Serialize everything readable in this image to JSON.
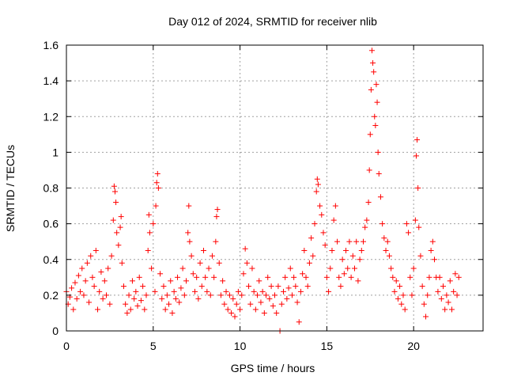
{
  "chart_data": {
    "type": "scatter",
    "title": "Day 012 of 2024, SRMTID for receiver nlib",
    "xlabel": "GPS time / hours",
    "ylabel": "SRMTID / TECUs",
    "xlim": [
      0,
      24
    ],
    "ylim": [
      0,
      1.6
    ],
    "xticks": [
      0,
      5,
      10,
      15,
      20
    ],
    "xtick_labels": [
      "0",
      "5",
      "10",
      "15",
      "20"
    ],
    "yticks": [
      0,
      0.2,
      0.4,
      0.6,
      0.8,
      1,
      1.2,
      1.4,
      1.6
    ],
    "ytick_labels": [
      "0",
      "0.2",
      "0.4",
      "0.6",
      "0.8",
      "1",
      "1.2",
      "1.4",
      "1.6"
    ],
    "grid": true,
    "marker": "plus",
    "color": "#ff0000",
    "series": [
      {
        "name": "SRMTID",
        "points": [
          [
            0.0,
            0.22
          ],
          [
            0.1,
            0.15
          ],
          [
            0.2,
            0.19
          ],
          [
            0.3,
            0.24
          ],
          [
            0.4,
            0.12
          ],
          [
            0.5,
            0.27
          ],
          [
            0.6,
            0.18
          ],
          [
            0.7,
            0.31
          ],
          [
            0.8,
            0.22
          ],
          [
            0.9,
            0.35
          ],
          [
            1.0,
            0.2
          ],
          [
            1.1,
            0.28
          ],
          [
            1.2,
            0.38
          ],
          [
            1.3,
            0.16
          ],
          [
            1.4,
            0.42
          ],
          [
            1.5,
            0.3
          ],
          [
            1.6,
            0.25
          ],
          [
            1.7,
            0.45
          ],
          [
            1.8,
            0.12
          ],
          [
            1.9,
            0.22
          ],
          [
            2.0,
            0.33
          ],
          [
            2.1,
            0.18
          ],
          [
            2.2,
            0.28
          ],
          [
            2.3,
            0.2
          ],
          [
            2.4,
            0.35
          ],
          [
            2.5,
            0.15
          ],
          [
            2.6,
            0.42
          ],
          [
            2.7,
            0.62
          ],
          [
            2.75,
            0.81
          ],
          [
            2.8,
            0.78
          ],
          [
            2.85,
            0.72
          ],
          [
            2.9,
            0.55
          ],
          [
            3.0,
            0.48
          ],
          [
            3.1,
            0.58
          ],
          [
            3.15,
            0.64
          ],
          [
            3.2,
            0.38
          ],
          [
            3.3,
            0.25
          ],
          [
            3.4,
            0.15
          ],
          [
            3.5,
            0.1
          ],
          [
            3.6,
            0.2
          ],
          [
            3.7,
            0.12
          ],
          [
            3.8,
            0.28
          ],
          [
            3.9,
            0.18
          ],
          [
            4.0,
            0.22
          ],
          [
            4.1,
            0.14
          ],
          [
            4.2,
            0.3
          ],
          [
            4.3,
            0.17
          ],
          [
            4.4,
            0.25
          ],
          [
            4.5,
            0.12
          ],
          [
            4.6,
            0.2
          ],
          [
            4.7,
            0.45
          ],
          [
            4.75,
            0.65
          ],
          [
            4.8,
            0.55
          ],
          [
            4.9,
            0.35
          ],
          [
            5.0,
            0.6
          ],
          [
            5.1,
            0.22
          ],
          [
            5.15,
            0.7
          ],
          [
            5.2,
            0.83
          ],
          [
            5.25,
            0.88
          ],
          [
            5.3,
            0.8
          ],
          [
            5.4,
            0.32
          ],
          [
            5.5,
            0.18
          ],
          [
            5.6,
            0.25
          ],
          [
            5.7,
            0.12
          ],
          [
            5.8,
            0.2
          ],
          [
            5.9,
            0.15
          ],
          [
            6.0,
            0.28
          ],
          [
            6.1,
            0.1
          ],
          [
            6.2,
            0.22
          ],
          [
            6.3,
            0.18
          ],
          [
            6.4,
            0.3
          ],
          [
            6.5,
            0.16
          ],
          [
            6.6,
            0.24
          ],
          [
            6.7,
            0.35
          ],
          [
            6.8,
            0.2
          ],
          [
            6.9,
            0.28
          ],
          [
            7.0,
            0.55
          ],
          [
            7.05,
            0.7
          ],
          [
            7.1,
            0.5
          ],
          [
            7.2,
            0.42
          ],
          [
            7.3,
            0.32
          ],
          [
            7.4,
            0.22
          ],
          [
            7.5,
            0.3
          ],
          [
            7.6,
            0.18
          ],
          [
            7.7,
            0.38
          ],
          [
            7.8,
            0.25
          ],
          [
            7.9,
            0.45
          ],
          [
            8.0,
            0.3
          ],
          [
            8.1,
            0.22
          ],
          [
            8.2,
            0.35
          ],
          [
            8.3,
            0.2
          ],
          [
            8.4,
            0.42
          ],
          [
            8.5,
            0.3
          ],
          [
            8.6,
            0.5
          ],
          [
            8.65,
            0.64
          ],
          [
            8.7,
            0.68
          ],
          [
            8.8,
            0.38
          ],
          [
            8.9,
            0.2
          ],
          [
            9.0,
            0.28
          ],
          [
            9.1,
            0.15
          ],
          [
            9.2,
            0.22
          ],
          [
            9.3,
            0.12
          ],
          [
            9.4,
            0.2
          ],
          [
            9.5,
            0.1
          ],
          [
            9.6,
            0.18
          ],
          [
            9.7,
            0.08
          ],
          [
            9.8,
            0.15
          ],
          [
            9.9,
            0.22
          ],
          [
            10.0,
            0.12
          ],
          [
            10.1,
            0.2
          ],
          [
            10.2,
            0.32
          ],
          [
            10.3,
            0.46
          ],
          [
            10.4,
            0.38
          ],
          [
            10.5,
            0.25
          ],
          [
            10.6,
            0.15
          ],
          [
            10.7,
            0.35
          ],
          [
            10.8,
            0.22
          ],
          [
            10.9,
            0.12
          ],
          [
            11.0,
            0.2
          ],
          [
            11.1,
            0.28
          ],
          [
            11.2,
            0.16
          ],
          [
            11.3,
            0.22
          ],
          [
            11.4,
            0.1
          ],
          [
            11.5,
            0.2
          ],
          [
            11.6,
            0.3
          ],
          [
            11.7,
            0.18
          ],
          [
            11.8,
            0.25
          ],
          [
            11.9,
            0.14
          ],
          [
            12.0,
            0.2
          ],
          [
            12.1,
            0.1
          ],
          [
            12.2,
            0.25
          ],
          [
            12.3,
            0.0
          ],
          [
            12.4,
            0.15
          ],
          [
            12.5,
            0.22
          ],
          [
            12.6,
            0.3
          ],
          [
            12.7,
            0.18
          ],
          [
            12.8,
            0.24
          ],
          [
            12.9,
            0.35
          ],
          [
            13.0,
            0.2
          ],
          [
            13.1,
            0.3
          ],
          [
            13.2,
            0.25
          ],
          [
            13.3,
            0.16
          ],
          [
            13.4,
            0.05
          ],
          [
            13.5,
            0.22
          ],
          [
            13.6,
            0.32
          ],
          [
            13.7,
            0.45
          ],
          [
            13.8,
            0.3
          ],
          [
            13.9,
            0.25
          ],
          [
            14.0,
            0.38
          ],
          [
            14.1,
            0.52
          ],
          [
            14.2,
            0.42
          ],
          [
            14.3,
            0.6
          ],
          [
            14.4,
            0.78
          ],
          [
            14.45,
            0.85
          ],
          [
            14.5,
            0.82
          ],
          [
            14.6,
            0.7
          ],
          [
            14.7,
            0.65
          ],
          [
            14.8,
            0.55
          ],
          [
            14.9,
            0.48
          ],
          [
            15.0,
            0.3
          ],
          [
            15.1,
            0.22
          ],
          [
            15.2,
            0.35
          ],
          [
            15.3,
            0.45
          ],
          [
            15.4,
            0.62
          ],
          [
            15.5,
            0.7
          ],
          [
            15.6,
            0.5
          ],
          [
            15.7,
            0.3
          ],
          [
            15.8,
            0.25
          ],
          [
            15.9,
            0.4
          ],
          [
            16.0,
            0.32
          ],
          [
            16.1,
            0.45
          ],
          [
            16.2,
            0.35
          ],
          [
            16.3,
            0.5
          ],
          [
            16.4,
            0.3
          ],
          [
            16.5,
            0.42
          ],
          [
            16.6,
            0.35
          ],
          [
            16.7,
            0.5
          ],
          [
            16.8,
            0.28
          ],
          [
            16.9,
            0.4
          ],
          [
            17.0,
            0.45
          ],
          [
            17.1,
            0.5
          ],
          [
            17.2,
            0.58
          ],
          [
            17.3,
            0.62
          ],
          [
            17.4,
            0.72
          ],
          [
            17.45,
            0.9
          ],
          [
            17.5,
            1.1
          ],
          [
            17.55,
            1.35
          ],
          [
            17.6,
            1.57
          ],
          [
            17.65,
            1.5
          ],
          [
            17.7,
            1.45
          ],
          [
            17.75,
            1.2
          ],
          [
            17.8,
            1.15
          ],
          [
            17.85,
            1.38
          ],
          [
            17.9,
            1.28
          ],
          [
            17.95,
            1.0
          ],
          [
            18.0,
            0.88
          ],
          [
            18.1,
            0.75
          ],
          [
            18.2,
            0.6
          ],
          [
            18.3,
            0.52
          ],
          [
            18.4,
            0.45
          ],
          [
            18.5,
            0.5
          ],
          [
            18.6,
            0.42
          ],
          [
            18.7,
            0.35
          ],
          [
            18.8,
            0.3
          ],
          [
            18.9,
            0.22
          ],
          [
            19.0,
            0.28
          ],
          [
            19.1,
            0.18
          ],
          [
            19.2,
            0.25
          ],
          [
            19.3,
            0.15
          ],
          [
            19.4,
            0.2
          ],
          [
            19.5,
            0.12
          ],
          [
            19.6,
            0.6
          ],
          [
            19.7,
            0.55
          ],
          [
            19.8,
            0.3
          ],
          [
            19.9,
            0.2
          ],
          [
            20.0,
            0.35
          ],
          [
            20.1,
            0.62
          ],
          [
            20.15,
            0.98
          ],
          [
            20.2,
            1.07
          ],
          [
            20.25,
            0.8
          ],
          [
            20.3,
            0.58
          ],
          [
            20.4,
            0.42
          ],
          [
            20.5,
            0.25
          ],
          [
            20.6,
            0.15
          ],
          [
            20.7,
            0.08
          ],
          [
            20.8,
            0.2
          ],
          [
            20.9,
            0.3
          ],
          [
            21.0,
            0.45
          ],
          [
            21.1,
            0.5
          ],
          [
            21.2,
            0.4
          ],
          [
            21.3,
            0.3
          ],
          [
            21.4,
            0.22
          ],
          [
            21.5,
            0.3
          ],
          [
            21.6,
            0.18
          ],
          [
            21.7,
            0.25
          ],
          [
            21.8,
            0.12
          ],
          [
            21.9,
            0.2
          ],
          [
            22.0,
            0.16
          ],
          [
            22.1,
            0.28
          ],
          [
            22.2,
            0.12
          ],
          [
            22.3,
            0.22
          ],
          [
            22.4,
            0.32
          ],
          [
            22.5,
            0.2
          ],
          [
            22.6,
            0.3
          ]
        ]
      }
    ]
  }
}
